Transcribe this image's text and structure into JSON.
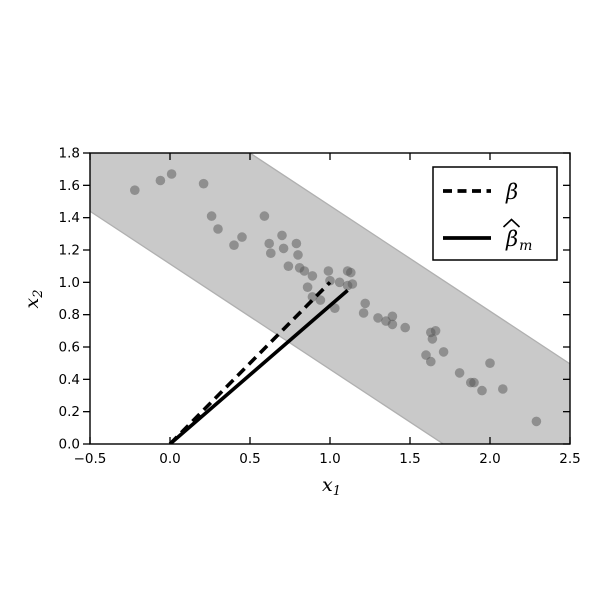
{
  "figure": {
    "xlabel": "x",
    "xlabel_sub": "1",
    "ylabel": "x",
    "ylabel_sub": "2",
    "x_tick_labels": [
      "−0.5",
      "0.0",
      "0.5",
      "1.0",
      "1.5",
      "2.0",
      "2.5"
    ],
    "y_tick_labels": [
      "0.0",
      "0.2",
      "0.4",
      "0.6",
      "0.8",
      "1.0",
      "1.2",
      "1.4",
      "1.6",
      "1.8"
    ],
    "legend": {
      "beta_label": "β",
      "betahat_label": "β",
      "betahat_sub": "m",
      "betahat_has_hat": true,
      "position": "upper right"
    }
  },
  "chart_data": {
    "type": "scatter",
    "title": "",
    "xlabel": "x_1",
    "ylabel": "x_2",
    "xlim": [
      -0.5,
      2.5
    ],
    "ylim": [
      0.0,
      1.8
    ],
    "x_ticks": [
      -0.5,
      0.0,
      0.5,
      1.0,
      1.5,
      2.0,
      2.5
    ],
    "y_ticks": [
      0.0,
      0.2,
      0.4,
      0.6,
      0.8,
      1.0,
      1.2,
      1.4,
      1.6,
      1.8
    ],
    "grid": false,
    "legend_position": "upper right",
    "points": [
      [
        -0.22,
        1.57
      ],
      [
        -0.06,
        1.63
      ],
      [
        0.01,
        1.67
      ],
      [
        0.21,
        1.61
      ],
      [
        0.26,
        1.41
      ],
      [
        0.3,
        1.33
      ],
      [
        0.4,
        1.23
      ],
      [
        0.45,
        1.28
      ],
      [
        0.59,
        1.41
      ],
      [
        0.62,
        1.24
      ],
      [
        0.63,
        1.18
      ],
      [
        0.7,
        1.29
      ],
      [
        0.71,
        1.21
      ],
      [
        0.74,
        1.1
      ],
      [
        0.79,
        1.24
      ],
      [
        0.8,
        1.17
      ],
      [
        0.81,
        1.09
      ],
      [
        0.84,
        1.07
      ],
      [
        0.86,
        0.97
      ],
      [
        0.89,
        1.04
      ],
      [
        0.89,
        0.91
      ],
      [
        0.94,
        0.89
      ],
      [
        0.99,
        1.07
      ],
      [
        1.0,
        1.01
      ],
      [
        1.06,
        1.0
      ],
      [
        1.11,
        1.07
      ],
      [
        1.13,
        1.06
      ],
      [
        1.11,
        0.98
      ],
      [
        1.14,
        0.99
      ],
      [
        1.03,
        0.84
      ],
      [
        1.22,
        0.87
      ],
      [
        1.21,
        0.81
      ],
      [
        1.3,
        0.78
      ],
      [
        1.35,
        0.76
      ],
      [
        1.39,
        0.79
      ],
      [
        1.39,
        0.74
      ],
      [
        1.47,
        0.72
      ],
      [
        1.6,
        0.55
      ],
      [
        1.63,
        0.69
      ],
      [
        1.66,
        0.7
      ],
      [
        1.64,
        0.65
      ],
      [
        1.63,
        0.51
      ],
      [
        1.71,
        0.57
      ],
      [
        1.81,
        0.44
      ],
      [
        1.88,
        0.38
      ],
      [
        1.9,
        0.38
      ],
      [
        1.95,
        0.33
      ],
      [
        2.0,
        0.5
      ],
      [
        2.08,
        0.34
      ],
      [
        2.29,
        0.14
      ]
    ],
    "point_style": {
      "color": "#555555",
      "opacity": 0.5,
      "radius_px": 4.8
    },
    "series": [
      {
        "name": "beta",
        "label": "β",
        "style": "dashed",
        "color": "#000000",
        "from": [
          0.0,
          0.0
        ],
        "to": [
          1.0,
          1.0
        ]
      },
      {
        "name": "beta_hat_m",
        "label": "β̂_m",
        "style": "solid",
        "color": "#000000",
        "from": [
          0.0,
          0.0
        ],
        "to": [
          1.11,
          0.95
        ]
      }
    ],
    "band": {
      "shape": "straight-band",
      "upper_line": {
        "slope": -0.652,
        "intercept": 2.126
      },
      "lower_line": {
        "slope": -0.652,
        "intercept": 1.114
      },
      "fill": "#c9c9c9",
      "edge": "#b0b0b0"
    }
  }
}
